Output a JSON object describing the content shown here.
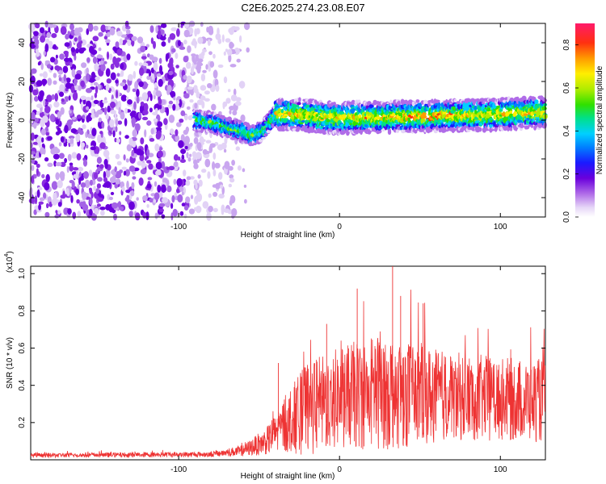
{
  "chart_data": [
    {
      "type": "heatmap",
      "title": "C2E6.2025.274.23.08.E07",
      "xlabel": "Height of straight line (km)",
      "ylabel": "Frequency (Hz)",
      "xlim": [
        -192,
        128
      ],
      "ylim": [
        -50,
        50
      ],
      "xticks": [
        -100,
        0,
        100
      ],
      "yticks": [
        -40,
        -20,
        0,
        20,
        40
      ],
      "colorbar": {
        "label": "Normalized spectral amplitude",
        "range": [
          0,
          0.9
        ],
        "ticks": [
          0.0,
          0.2,
          0.4,
          0.6,
          0.8
        ]
      },
      "trace": {
        "start_km": -90,
        "points": [
          {
            "x": -90,
            "y": 0
          },
          {
            "x": -80,
            "y": -1
          },
          {
            "x": -70,
            "y": -4
          },
          {
            "x": -60,
            "y": -6
          },
          {
            "x": -55,
            "y": -8
          },
          {
            "x": -48,
            "y": -6
          },
          {
            "x": -40,
            "y": 3
          },
          {
            "x": -30,
            "y": 3
          },
          {
            "x": 0,
            "y": 1
          },
          {
            "x": 50,
            "y": 2
          },
          {
            "x": 100,
            "y": 3
          },
          {
            "x": 128,
            "y": 4
          }
        ]
      }
    },
    {
      "type": "line",
      "title": "",
      "xlabel": "Height of straight line (km)",
      "ylabel": "SNR (10 * v/v)",
      "scale_label": "(x10",
      "scale_exp": "4",
      "scale_close": ")",
      "xlim": [
        -192,
        128
      ],
      "ylim": [
        0,
        1.04
      ],
      "xticks": [
        -100,
        0,
        100
      ],
      "yticks": [
        0.2,
        0.4,
        0.6,
        0.8,
        1.0
      ],
      "series": [
        {
          "name": "SNR",
          "color": "#ee3333",
          "envelope": [
            {
              "x": -192,
              "base": 0.02,
              "amp": 0.025
            },
            {
              "x": -80,
              "base": 0.025,
              "amp": 0.03
            },
            {
              "x": -60,
              "base": 0.04,
              "amp": 0.06
            },
            {
              "x": -45,
              "base": 0.08,
              "amp": 0.15
            },
            {
              "x": -35,
              "base": 0.14,
              "amp": 0.3
            },
            {
              "x": -20,
              "base": 0.2,
              "amp": 0.5
            },
            {
              "x": 0,
              "base": 0.25,
              "amp": 0.55
            },
            {
              "x": 30,
              "base": 0.28,
              "amp": 0.65
            },
            {
              "x": 60,
              "base": 0.27,
              "amp": 0.5
            },
            {
              "x": 100,
              "base": 0.26,
              "amp": 0.45
            },
            {
              "x": 128,
              "base": 0.25,
              "amp": 0.45
            }
          ],
          "peaks": [
            {
              "x": 33,
              "y": 1.04
            },
            {
              "x": 11,
              "y": 0.92
            },
            {
              "x": 38,
              "y": 0.88
            },
            {
              "x": -8,
              "y": 0.73
            },
            {
              "x": -38,
              "y": 0.52
            },
            {
              "x": 52,
              "y": 0.84
            }
          ]
        }
      ]
    }
  ]
}
